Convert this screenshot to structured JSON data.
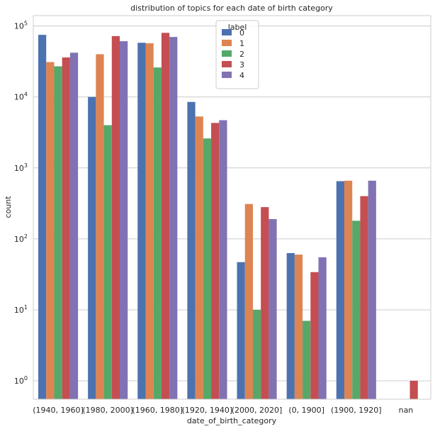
{
  "chart_data": {
    "type": "bar",
    "title": "distribution of topics for each date of birth category",
    "xlabel": "date_of_birth_category",
    "ylabel": "count",
    "yscale": "log",
    "ylim": [
      0.55,
      140000
    ],
    "yticks": [
      {
        "value": 1,
        "base": "10",
        "exp": "0"
      },
      {
        "value": 10,
        "base": "10",
        "exp": "1"
      },
      {
        "value": 100,
        "base": "10",
        "exp": "2"
      },
      {
        "value": 1000,
        "base": "10",
        "exp": "3"
      },
      {
        "value": 10000,
        "base": "10",
        "exp": "4"
      },
      {
        "value": 100000,
        "base": "10",
        "exp": "5"
      }
    ],
    "grid": "horizontal",
    "legend": {
      "title": "label",
      "placement": "top-center"
    },
    "categories": [
      "(1940, 1960]",
      "(1980, 2000]",
      "(1960, 1980]",
      "(1920, 1940]",
      "(2000, 2020]",
      "(0, 1900]",
      "(1900, 1920]",
      "nan"
    ],
    "series": [
      {
        "name": "0",
        "color": "#4c72b0",
        "values": [
          75000,
          10000,
          58000,
          8500,
          47,
          63,
          650,
          null
        ]
      },
      {
        "name": "1",
        "color": "#dd8452",
        "values": [
          31000,
          40000,
          57000,
          5300,
          310,
          60,
          660,
          null
        ]
      },
      {
        "name": "2",
        "color": "#55a868",
        "values": [
          27000,
          4000,
          26000,
          2600,
          10,
          7,
          180,
          null
        ]
      },
      {
        "name": "3",
        "color": "#c44e52",
        "values": [
          36000,
          72000,
          80000,
          4300,
          280,
          34,
          400,
          1
        ]
      },
      {
        "name": "4",
        "color": "#8172b3",
        "values": [
          42000,
          61000,
          70000,
          4700,
          190,
          55,
          660,
          null
        ]
      }
    ]
  }
}
